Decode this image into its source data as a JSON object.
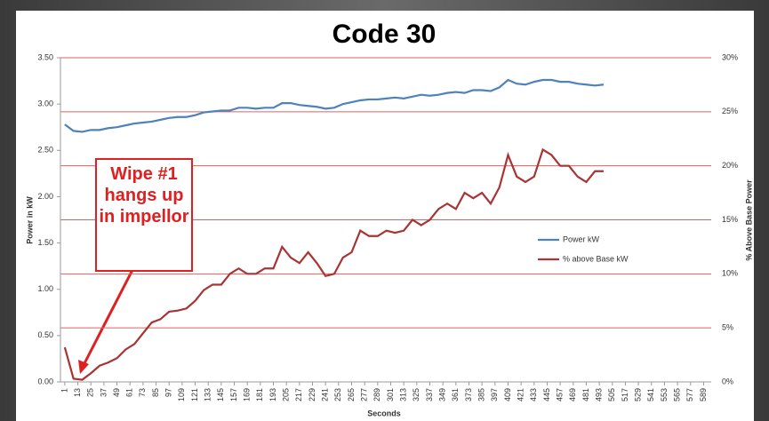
{
  "chart_data": {
    "type": "line",
    "title": "Code 30",
    "xlabel": "Seconds",
    "ylabel": "Power in kW",
    "y2label": "% Above Base Power",
    "annotation": "Wipe #1 hangs up in impellor",
    "legend": "right",
    "grid": "y2",
    "x": [
      1,
      9,
      17,
      25,
      33,
      41,
      49,
      57,
      65,
      73,
      81,
      89,
      97,
      105,
      113,
      121,
      129,
      137,
      145,
      153,
      161,
      169,
      177,
      185,
      193,
      201,
      209,
      217,
      225,
      233,
      241,
      249,
      257,
      265,
      273,
      281,
      289,
      297,
      305,
      313,
      321,
      329,
      337,
      345,
      353,
      361,
      369,
      377,
      385,
      393,
      401,
      409,
      417,
      425,
      433,
      441,
      449,
      457,
      465,
      473,
      481,
      489,
      497
    ],
    "series": [
      {
        "name": "Power kW",
        "color": "#4f81bd",
        "axis": "y",
        "values": [
          2.78,
          2.71,
          2.7,
          2.72,
          2.72,
          2.74,
          2.75,
          2.77,
          2.79,
          2.8,
          2.81,
          2.83,
          2.85,
          2.86,
          2.86,
          2.88,
          2.91,
          2.92,
          2.93,
          2.93,
          2.96,
          2.96,
          2.95,
          2.96,
          2.96,
          3.01,
          3.01,
          2.99,
          2.98,
          2.97,
          2.95,
          2.96,
          3.0,
          3.02,
          3.04,
          3.05,
          3.05,
          3.06,
          3.07,
          3.06,
          3.08,
          3.1,
          3.09,
          3.1,
          3.12,
          3.13,
          3.12,
          3.15,
          3.15,
          3.14,
          3.18,
          3.26,
          3.22,
          3.21,
          3.24,
          3.26,
          3.26,
          3.24,
          3.24,
          3.22,
          3.21,
          3.2,
          3.21
        ]
      },
      {
        "name": "% above Base kW",
        "color": "#a83434",
        "axis": "y2",
        "values": [
          3.2,
          0.3,
          0.2,
          0.8,
          1.5,
          1.8,
          2.2,
          3.0,
          3.5,
          4.5,
          5.5,
          5.8,
          6.5,
          6.6,
          6.8,
          7.5,
          8.5,
          9.0,
          9.0,
          10.0,
          10.5,
          10.0,
          10.0,
          10.5,
          10.5,
          12.5,
          11.5,
          11.0,
          12.0,
          11.0,
          9.8,
          10.0,
          11.5,
          12.0,
          14.0,
          13.5,
          13.5,
          14.0,
          13.8,
          14.0,
          15.0,
          14.5,
          15.0,
          16.0,
          16.5,
          16.0,
          17.5,
          17.0,
          17.5,
          16.5,
          18.0,
          21.0,
          19.0,
          18.5,
          19.0,
          21.5,
          21.0,
          20.0,
          20.0,
          19.0,
          18.5,
          19.5,
          19.5
        ]
      }
    ],
    "xlim": [
      -3,
      596
    ],
    "xticks": [
      1,
      13,
      25,
      37,
      49,
      61,
      73,
      85,
      97,
      109,
      121,
      133,
      145,
      157,
      169,
      181,
      193,
      205,
      217,
      229,
      241,
      253,
      265,
      277,
      289,
      301,
      313,
      325,
      337,
      349,
      361,
      373,
      385,
      397,
      409,
      421,
      433,
      445,
      457,
      469,
      481,
      493,
      505,
      517,
      529,
      541,
      553,
      565,
      577,
      589
    ],
    "ylim": [
      0,
      3.5
    ],
    "yticks": [
      {
        "value": 0,
        "label": "0.00"
      },
      {
        "value": 0.5,
        "label": "0.50"
      },
      {
        "value": 1,
        "label": "1.00"
      },
      {
        "value": 1.5,
        "label": "1.50"
      },
      {
        "value": 2,
        "label": "2.00"
      },
      {
        "value": 2.5,
        "label": "2.50"
      },
      {
        "value": 3,
        "label": "3.00"
      },
      {
        "value": 3.5,
        "label": "3.50"
      }
    ],
    "y2lim": [
      0,
      30
    ],
    "y2ticks": [
      {
        "value": 0,
        "label": "0%"
      },
      {
        "value": 5,
        "label": "5%"
      },
      {
        "value": 10,
        "label": "10%"
      },
      {
        "value": 15,
        "label": "15%"
      },
      {
        "value": 20,
        "label": "20%"
      },
      {
        "value": 25,
        "label": "25%"
      },
      {
        "value": 30,
        "label": "30%"
      }
    ]
  }
}
